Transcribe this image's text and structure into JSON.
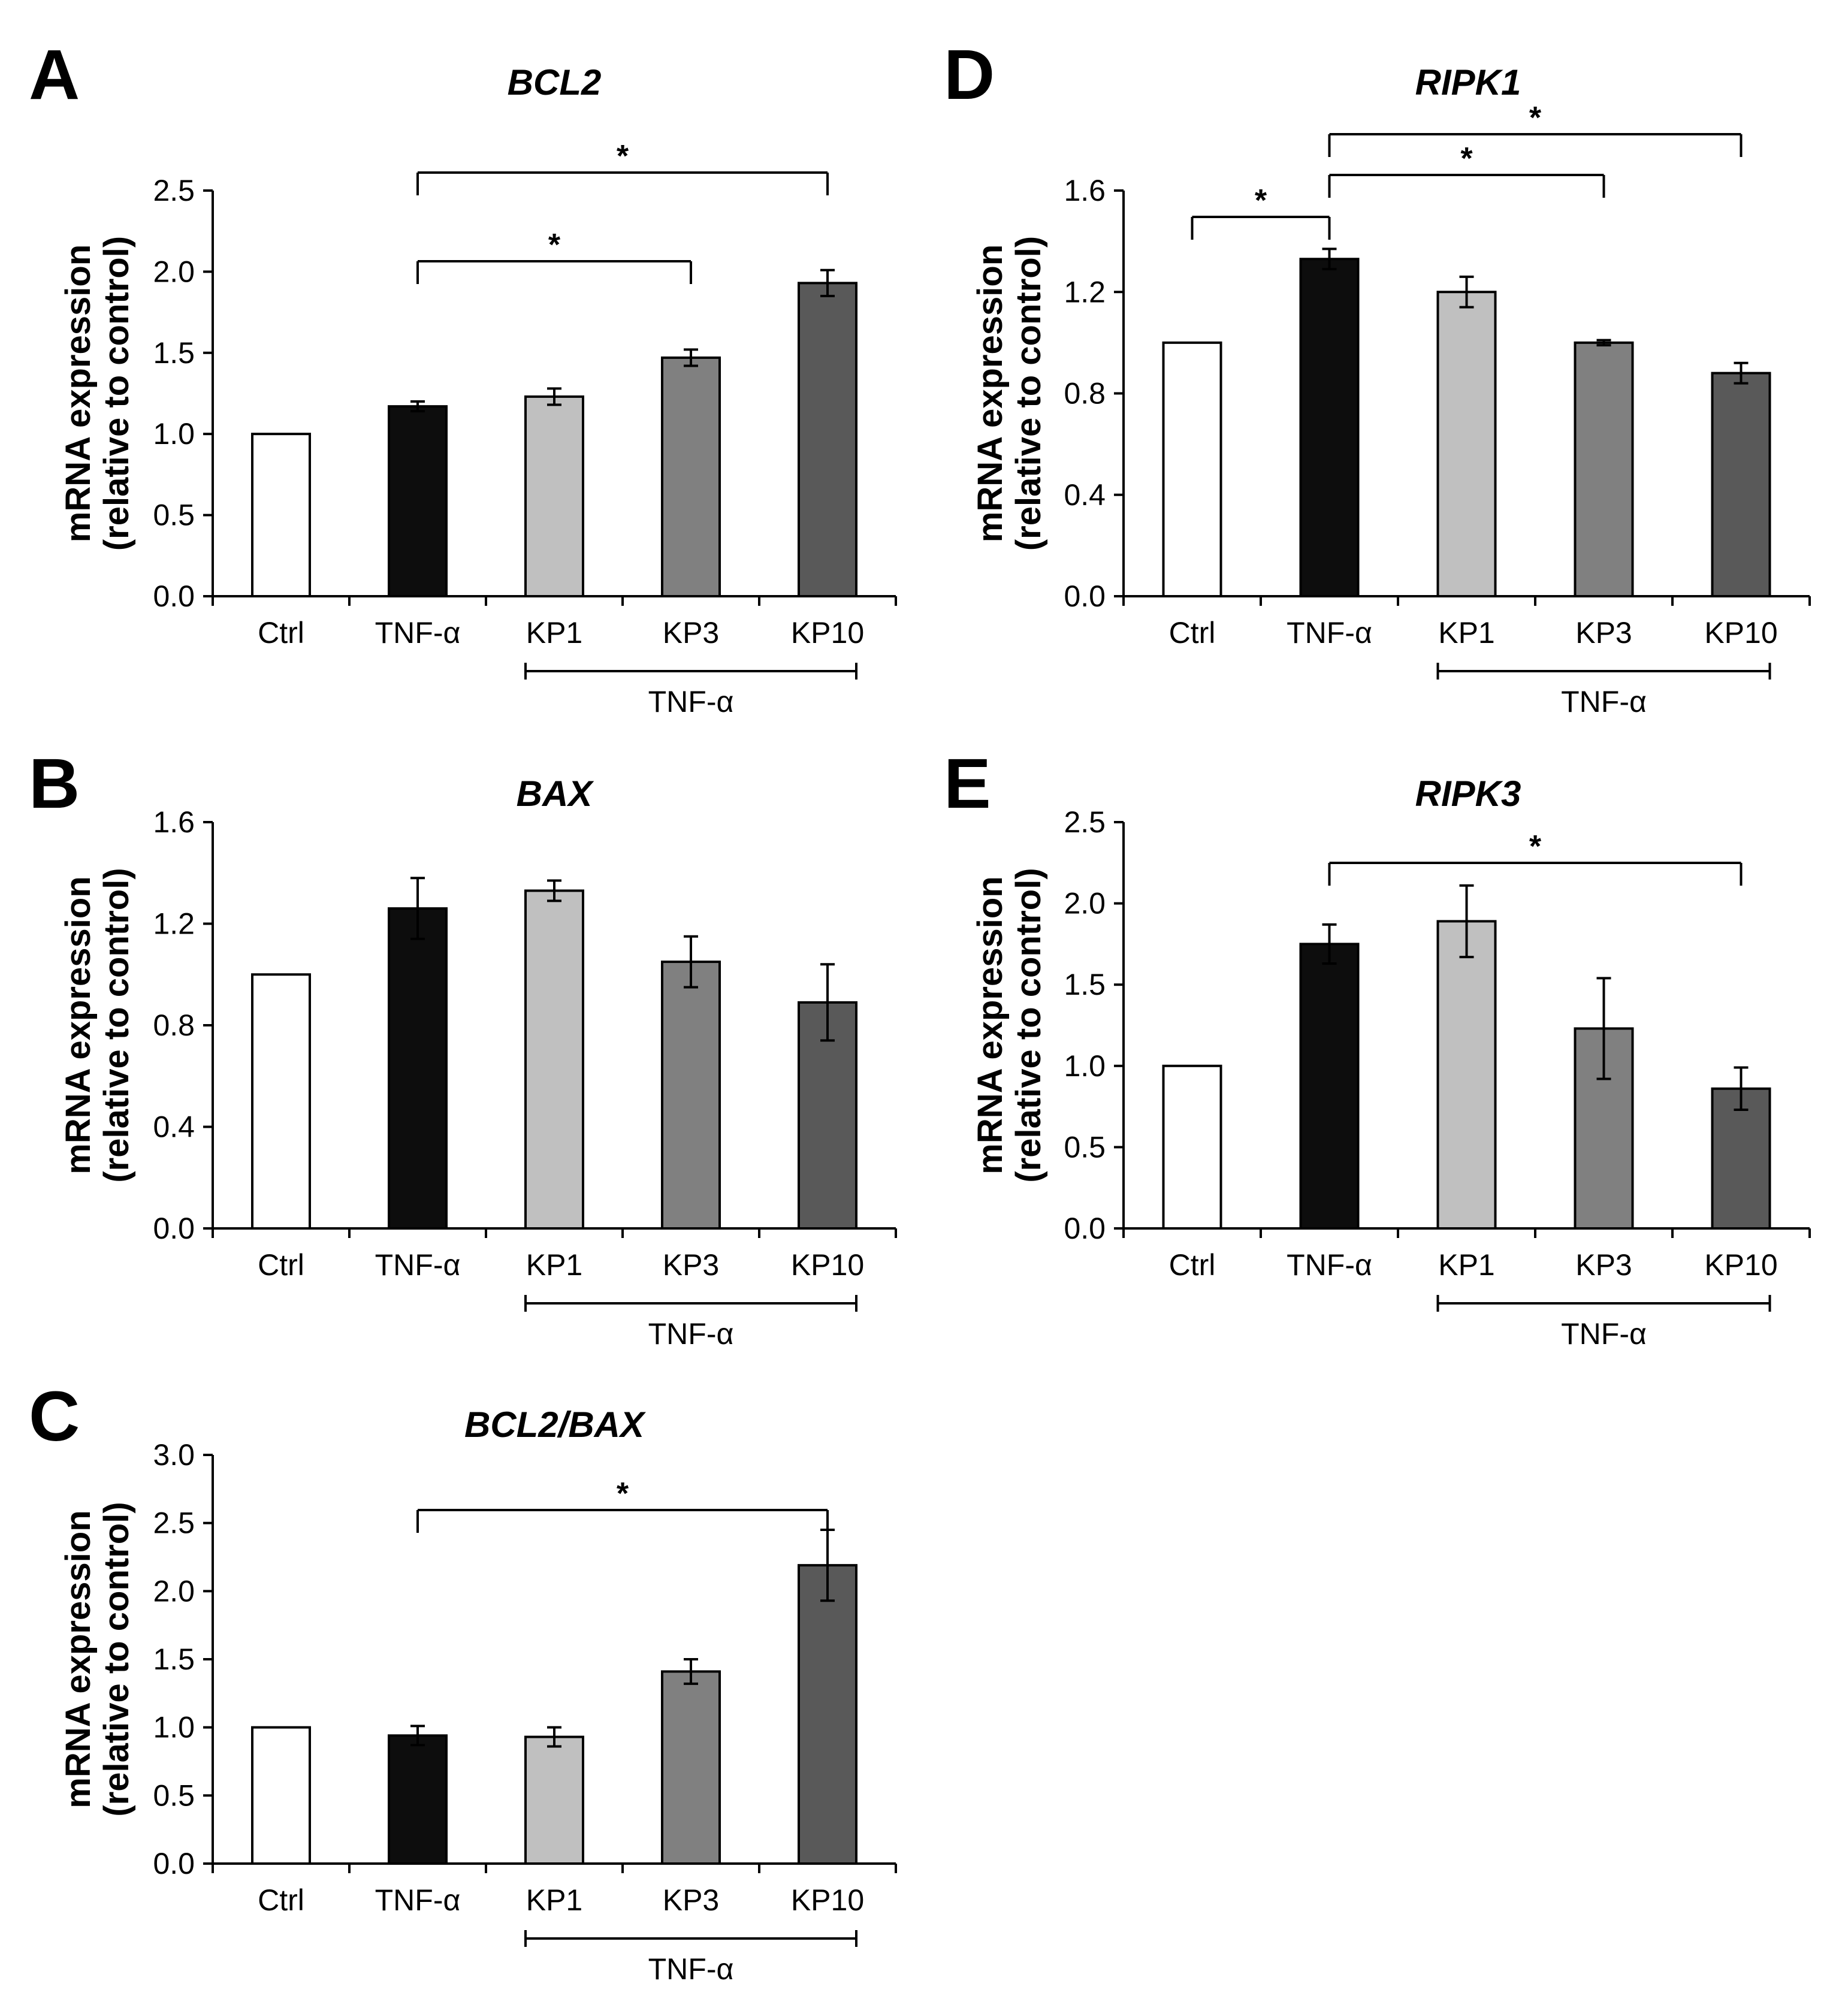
{
  "figure": {
    "category_colors": [
      "#ffffff",
      "#0d0d0d",
      "#c0c0c0",
      "#808080",
      "#595959"
    ]
  },
  "chart_data": [
    {
      "panel": "A",
      "type": "bar",
      "title": "BCL2",
      "ylabel_line1": "mRNA expression",
      "ylabel_line2": "(relative to control)",
      "xlabel": "",
      "categories": [
        "Ctrl",
        "TNF-α",
        "KP1",
        "KP3",
        "KP10"
      ],
      "values": [
        1.0,
        1.17,
        1.23,
        1.47,
        1.93
      ],
      "errors": [
        0.0,
        0.03,
        0.05,
        0.05,
        0.08
      ],
      "ylim": [
        0,
        2.5
      ],
      "yticks": [
        "0.0",
        "0.5",
        "1.0",
        "1.5",
        "2.0",
        "2.5"
      ],
      "group_label": "TNF-α",
      "group_span": [
        2,
        4
      ],
      "significance": [
        {
          "from": 1,
          "to": 3,
          "label": "*",
          "level": 0
        },
        {
          "from": 1,
          "to": 4,
          "label": "*",
          "level": 1
        }
      ]
    },
    {
      "panel": "B",
      "type": "bar",
      "title": "BAX",
      "ylabel_line1": "mRNA expression",
      "ylabel_line2": "(relative to control)",
      "xlabel": "",
      "categories": [
        "Ctrl",
        "TNF-α",
        "KP1",
        "KP3",
        "KP10"
      ],
      "values": [
        1.0,
        1.26,
        1.33,
        1.05,
        0.89
      ],
      "errors": [
        0.0,
        0.12,
        0.04,
        0.1,
        0.15
      ],
      "ylim": [
        0,
        1.6
      ],
      "yticks": [
        "0.0",
        "0.4",
        "0.8",
        "1.2",
        "1.6"
      ],
      "group_label": "TNF-α",
      "group_span": [
        2,
        4
      ],
      "significance": []
    },
    {
      "panel": "C",
      "type": "bar",
      "title": "BCL2/BAX",
      "ylabel_line1": "mRNA expression",
      "ylabel_line2": "(relative to control)",
      "xlabel": "",
      "categories": [
        "Ctrl",
        "TNF-α",
        "KP1",
        "KP3",
        "KP10"
      ],
      "values": [
        1.0,
        0.94,
        0.93,
        1.41,
        2.19
      ],
      "errors": [
        0.0,
        0.07,
        0.07,
        0.09,
        0.26
      ],
      "ylim": [
        0,
        3.0
      ],
      "yticks": [
        "0.0",
        "0.5",
        "1.0",
        "1.5",
        "2.0",
        "2.5",
        "3.0"
      ],
      "group_label": "TNF-α",
      "group_span": [
        2,
        4
      ],
      "significance": [
        {
          "from": 1,
          "to": 4,
          "label": "*",
          "level": 0
        }
      ]
    },
    {
      "panel": "D",
      "type": "bar",
      "title": "RIPK1",
      "ylabel_line1": "mRNA expression",
      "ylabel_line2": "(relative to control)",
      "xlabel": "",
      "categories": [
        "Ctrl",
        "TNF-α",
        "KP1",
        "KP3",
        "KP10"
      ],
      "values": [
        1.0,
        1.33,
        1.2,
        1.0,
        0.88
      ],
      "errors": [
        0.0,
        0.04,
        0.06,
        0.01,
        0.04
      ],
      "ylim": [
        0,
        1.6
      ],
      "yticks": [
        "0.0",
        "0.4",
        "0.8",
        "1.2",
        "1.6"
      ],
      "group_label": "TNF-α",
      "group_span": [
        2,
        4
      ],
      "significance": [
        {
          "from": 0,
          "to": 1,
          "label": "*",
          "level": 0
        },
        {
          "from": 1,
          "to": 3,
          "label": "*",
          "level": 1
        },
        {
          "from": 1,
          "to": 4,
          "label": "*",
          "level": 2
        }
      ]
    },
    {
      "panel": "E",
      "type": "bar",
      "title": "RIPK3",
      "ylabel_line1": "mRNA expression",
      "ylabel_line2": "(relative to control)",
      "xlabel": "",
      "categories": [
        "Ctrl",
        "TNF-α",
        "KP1",
        "KP3",
        "KP10"
      ],
      "values": [
        1.0,
        1.75,
        1.89,
        1.23,
        0.86
      ],
      "errors": [
        0.0,
        0.12,
        0.22,
        0.31,
        0.13
      ],
      "ylim": [
        0,
        2.5
      ],
      "yticks": [
        "0.0",
        "0.5",
        "1.0",
        "1.5",
        "2.0",
        "2.5"
      ],
      "group_label": "TNF-α",
      "group_span": [
        2,
        4
      ],
      "significance": [
        {
          "from": 1,
          "to": 4,
          "label": "*",
          "level": 0
        }
      ]
    }
  ]
}
